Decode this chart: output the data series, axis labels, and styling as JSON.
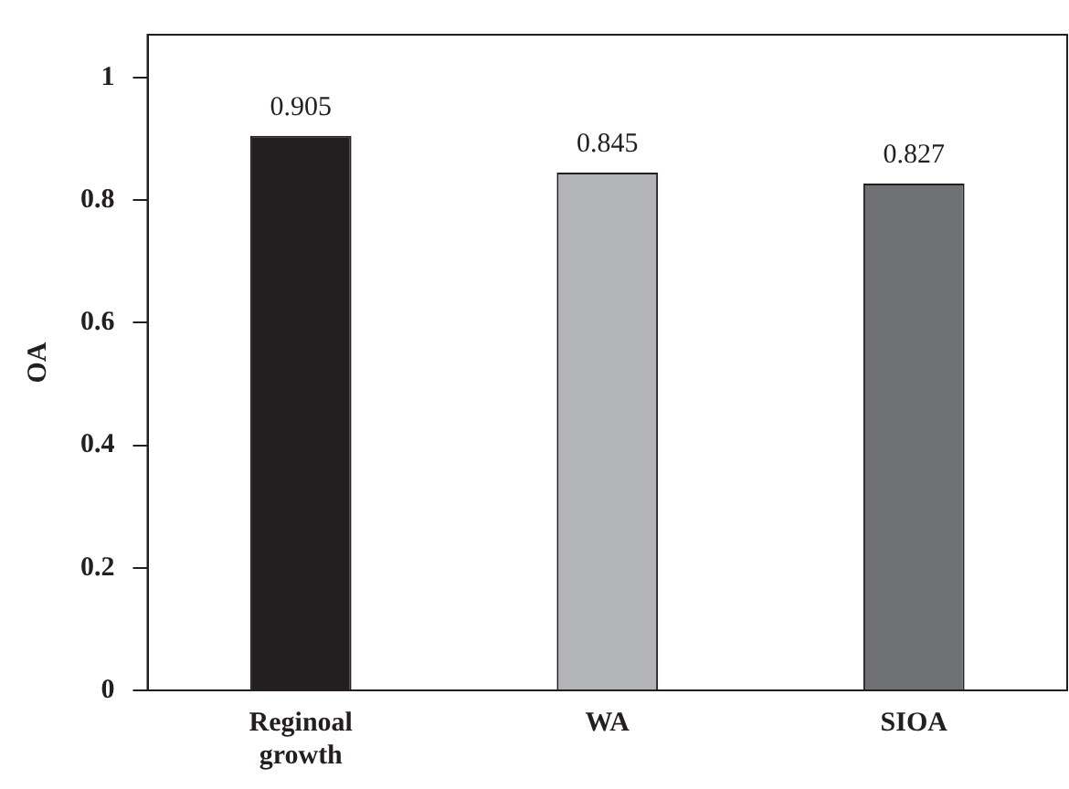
{
  "chart_data": {
    "type": "bar",
    "ylabel": "OA",
    "categories": [
      "Reginoal growth",
      "WA",
      "SIOA"
    ],
    "values": [
      0.905,
      0.845,
      0.827
    ],
    "colors": [
      "#231f20",
      "#b3b4b7",
      "#707174"
    ],
    "ylim": [
      0,
      1.07
    ],
    "yticks": [
      0,
      0.2,
      0.4,
      0.6,
      0.8,
      1
    ],
    "grid": false,
    "data_labels": true
  }
}
